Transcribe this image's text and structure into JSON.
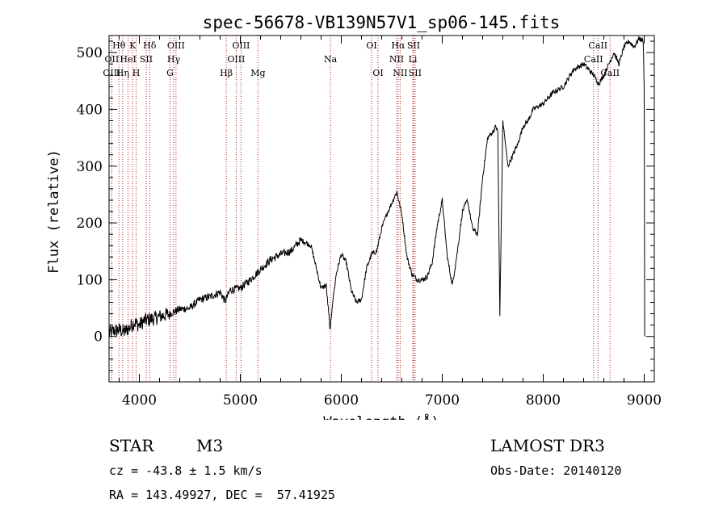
{
  "chart_data": {
    "type": "line",
    "title": "spec-56678-VB139N57V1_sp06-145.fits",
    "xlabel": "Wavelength (Å)",
    "ylabel": "Flux (relative)",
    "xlim": [
      3700,
      9100
    ],
    "ylim": [
      -80,
      530
    ],
    "x_ticks": [
      4000,
      5000,
      6000,
      7000,
      8000,
      9000
    ],
    "y_ticks": [
      0,
      100,
      200,
      300,
      400,
      500
    ],
    "x_minor_step": 200,
    "y_minor_step": 20,
    "spectrum": {
      "x": [
        3700,
        3750,
        3800,
        3850,
        3900,
        3950,
        4000,
        4050,
        4100,
        4150,
        4200,
        4300,
        4400,
        4500,
        4600,
        4700,
        4800,
        4850,
        4900,
        5000,
        5100,
        5200,
        5300,
        5400,
        5500,
        5600,
        5700,
        5800,
        5850,
        5890,
        5910,
        5950,
        6000,
        6050,
        6100,
        6150,
        6200,
        6250,
        6300,
        6350,
        6400,
        6450,
        6500,
        6550,
        6600,
        6650,
        6700,
        6750,
        6800,
        6850,
        6900,
        6950,
        7000,
        7050,
        7100,
        7150,
        7200,
        7250,
        7300,
        7350,
        7400,
        7450,
        7500,
        7530,
        7550,
        7570,
        7600,
        7650,
        7700,
        7750,
        7800,
        7850,
        7900,
        8000,
        8100,
        8200,
        8300,
        8400,
        8500,
        8550,
        8600,
        8650,
        8700,
        8750,
        8800,
        8850,
        8900,
        8950,
        8990,
        9000,
        9005
      ],
      "y": [
        5,
        10,
        12,
        8,
        15,
        25,
        20,
        28,
        30,
        32,
        35,
        40,
        48,
        50,
        65,
        70,
        78,
        62,
        82,
        85,
        100,
        118,
        135,
        145,
        150,
        170,
        160,
        85,
        90,
        10,
        55,
        110,
        145,
        130,
        80,
        60,
        65,
        120,
        145,
        150,
        190,
        215,
        235,
        255,
        215,
        140,
        110,
        100,
        100,
        105,
        130,
        195,
        240,
        140,
        90,
        150,
        220,
        240,
        190,
        180,
        280,
        350,
        360,
        370,
        360,
        35,
        380,
        300,
        320,
        340,
        370,
        380,
        400,
        410,
        430,
        440,
        470,
        480,
        460,
        445,
        460,
        480,
        500,
        480,
        510,
        520,
        510,
        525,
        520,
        440,
        0
      ]
    },
    "lines": [
      {
        "wave": 3798,
        "label": "Hθ",
        "row": 0
      },
      {
        "wave": 3727,
        "label": "OII",
        "row": 1
      },
      {
        "wave": 3727,
        "label": "OIII",
        "row": 2
      },
      {
        "wave": 3835,
        "label": "Hη",
        "row": 2
      },
      {
        "wave": 3889,
        "label": "HeI",
        "row": 1
      },
      {
        "wave": 3934,
        "label": "K",
        "row": 0
      },
      {
        "wave": 3968,
        "label": "H",
        "row": 2
      },
      {
        "wave": 4068,
        "label": "SII",
        "row": 1
      },
      {
        "wave": 4102,
        "label": "Hδ",
        "row": 0
      },
      {
        "wave": 4304,
        "label": "G",
        "row": 2
      },
      {
        "wave": 4340,
        "label": "Hγ",
        "row": 1
      },
      {
        "wave": 4363,
        "label": "OIII",
        "row": 0
      },
      {
        "wave": 4861,
        "label": "Hβ",
        "row": 2
      },
      {
        "wave": 4959,
        "label": "OIII",
        "row": 1
      },
      {
        "wave": 5007,
        "label": "OIII",
        "row": 0
      },
      {
        "wave": 5175,
        "label": "Mg",
        "row": 2
      },
      {
        "wave": 5893,
        "label": "Na",
        "row": 1
      },
      {
        "wave": 6300,
        "label": "OI",
        "row": 0
      },
      {
        "wave": 6364,
        "label": "OI",
        "row": 2
      },
      {
        "wave": 6548,
        "label": "NII",
        "row": 1
      },
      {
        "wave": 6563,
        "label": "Hα",
        "row": 0
      },
      {
        "wave": 6583,
        "label": "NII",
        "row": 2
      },
      {
        "wave": 6708,
        "label": "Li",
        "row": 1
      },
      {
        "wave": 6716,
        "label": "SII",
        "row": 0
      },
      {
        "wave": 6731,
        "label": "SII",
        "row": 2
      },
      {
        "wave": 8498,
        "label": "CaII",
        "row": 1
      },
      {
        "wave": 8542,
        "label": "CaII",
        "row": 0
      },
      {
        "wave": 8662,
        "label": "CaII",
        "row": 2
      }
    ]
  },
  "info": {
    "object_class": "STAR",
    "subclass": "M3",
    "survey": "LAMOST DR3",
    "redshift": "cz = -43.8 ± 1.5 km/s",
    "obs_date": "Obs-Date: 20140120",
    "coords": "RA = 143.49927, DEC =  57.41925"
  },
  "colors": {
    "line_marker": "#b22222",
    "spectrum": "#000000",
    "axes": "#000000"
  }
}
